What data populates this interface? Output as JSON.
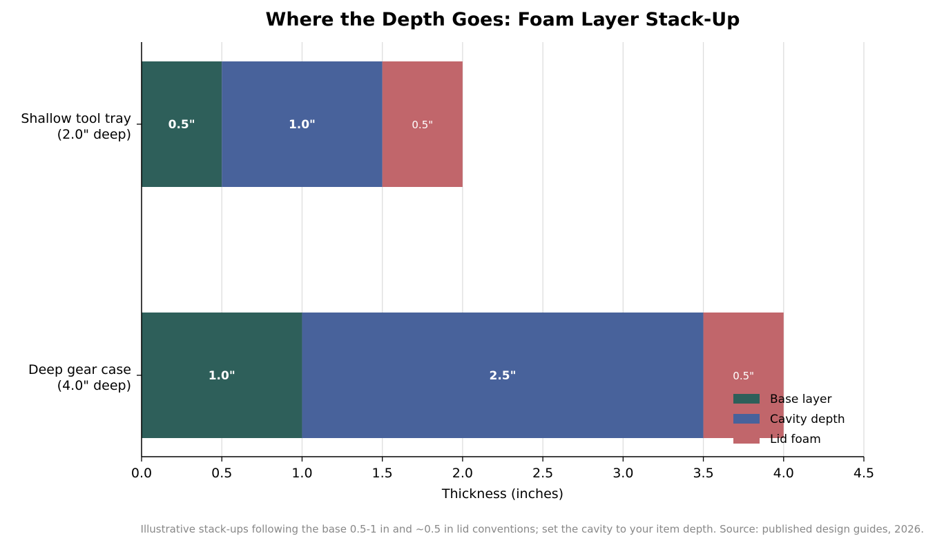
{
  "chart_data": {
    "type": "bar",
    "orientation": "horizontal",
    "stacked": true,
    "title": "Where the Depth Goes: Foam Layer Stack-Up",
    "xlabel": "Thickness (inches)",
    "ylabel": "",
    "xlim": [
      0,
      4.5
    ],
    "x_ticks": [
      "0.0",
      "0.5",
      "1.0",
      "1.5",
      "2.0",
      "2.5",
      "3.0",
      "3.5",
      "4.0",
      "4.5"
    ],
    "categories": [
      {
        "line1": "Shallow tool tray",
        "line2": "(2.0\" deep)"
      },
      {
        "line1": "Deep gear case",
        "line2": "(4.0\" deep)"
      }
    ],
    "series": [
      {
        "name": "Base layer",
        "color": "#2e5f5a",
        "values": [
          0.5,
          1.0
        ],
        "labels": [
          "0.5\"",
          "1.0\""
        ],
        "label_style": "bold"
      },
      {
        "name": "Cavity depth",
        "color": "#48629b",
        "values": [
          1.0,
          2.5
        ],
        "labels": [
          "1.0\"",
          "2.5\""
        ],
        "label_style": "bold"
      },
      {
        "name": "Lid foam",
        "color": "#c1666b",
        "values": [
          0.5,
          0.5
        ],
        "labels": [
          "0.5\"",
          "0.5\""
        ],
        "label_style": "light"
      }
    ],
    "grid": "vertical",
    "legend_position": "lower-right",
    "caption": "Illustrative stack-ups following the base 0.5-1 in and ~0.5 in lid conventions; set the cavity to your item depth. Source: published design guides, 2026."
  }
}
